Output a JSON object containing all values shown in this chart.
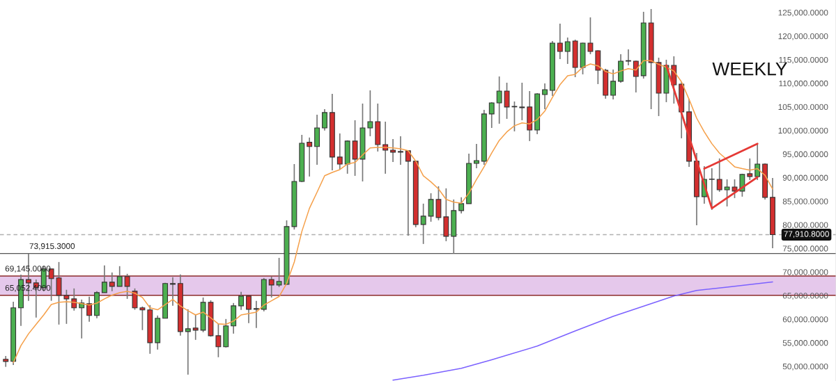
{
  "chart_data": {
    "type": "candlestick",
    "categories": [
      null,
      null,
      null,
      null,
      null,
      null,
      null,
      null,
      null,
      null,
      null,
      null,
      null,
      null,
      null,
      null,
      null,
      null,
      null,
      null,
      null,
      null,
      null,
      null,
      null,
      null,
      null,
      null,
      null,
      null,
      null,
      null,
      null,
      null,
      null,
      null,
      null,
      null,
      null,
      null,
      null,
      null,
      null,
      null,
      null,
      null,
      null,
      null,
      null,
      null,
      null,
      null,
      null,
      null,
      null,
      null,
      null,
      null,
      null,
      null,
      null,
      null,
      null,
      null,
      null,
      null,
      null,
      null,
      null,
      null,
      null,
      null,
      null,
      null,
      null,
      null,
      null,
      null,
      null,
      null,
      null,
      null,
      null,
      null,
      null,
      null,
      null,
      null,
      null,
      null,
      null,
      null,
      null,
      null,
      null,
      null,
      null,
      null,
      null,
      null,
      null,
      null
    ],
    "ohlc": [
      [
        51500,
        52200,
        49900,
        51050
      ],
      [
        51060,
        63700,
        50300,
        62400
      ],
      [
        62400,
        69460,
        58570,
        68400
      ],
      [
        68400,
        73900,
        63870,
        67700
      ],
      [
        67700,
        68400,
        60330,
        66700
      ],
      [
        66700,
        71240,
        65930,
        70650
      ],
      [
        70650,
        70650,
        63900,
        68590
      ],
      [
        68740,
        72120,
        58860,
        65050
      ],
      [
        65050,
        66230,
        59010,
        64310
      ],
      [
        64310,
        66520,
        61810,
        62400
      ],
      [
        62400,
        64160,
        55920,
        63430
      ],
      [
        63280,
        64750,
        59450,
        60780
      ],
      [
        60780,
        65930,
        60190,
        65640
      ],
      [
        65640,
        71380,
        65640,
        67850
      ],
      [
        67850,
        69900,
        65930,
        66960
      ],
      [
        66960,
        71240,
        66960,
        69030
      ],
      [
        69030,
        69620,
        64310,
        66960
      ],
      [
        65930,
        66520,
        62000,
        62400
      ],
      [
        62400,
        62700,
        57690,
        61960
      ],
      [
        61960,
        62990,
        52670,
        55030
      ],
      [
        55030,
        60780,
        53560,
        60190
      ],
      [
        60190,
        67700,
        60190,
        67560
      ],
      [
        67560,
        68880,
        62840,
        67400
      ],
      [
        67560,
        69470,
        56500,
        57380
      ],
      [
        57380,
        62100,
        48250,
        57970
      ],
      [
        58120,
        61060,
        55620,
        57680
      ],
      [
        57680,
        64600,
        57240,
        63570
      ],
      [
        63570,
        64010,
        56300,
        56500
      ],
      [
        56500,
        59010,
        51940,
        54150
      ],
      [
        54150,
        60040,
        54000,
        58570
      ],
      [
        58570,
        63430,
        56940,
        62840
      ],
      [
        62840,
        65780,
        61960,
        64900
      ],
      [
        64900,
        64900,
        59150,
        62100
      ],
      [
        62100,
        63870,
        58130,
        62250
      ],
      [
        62100,
        68730,
        61660,
        68420
      ],
      [
        68420,
        69030,
        64600,
        67250
      ],
      [
        67250,
        73000,
        66820,
        68000
      ],
      [
        67400,
        80950,
        67250,
        79630
      ],
      [
        79630,
        92880,
        79000,
        89200
      ],
      [
        89200,
        99070,
        89050,
        97300
      ],
      [
        97500,
        98500,
        90240,
        96600
      ],
      [
        96600,
        103350,
        92740,
        100540
      ],
      [
        100540,
        104520,
        100000,
        103790
      ],
      [
        103790,
        107760,
        91560,
        94360
      ],
      [
        94360,
        99370,
        91710,
        92880
      ],
      [
        92880,
        97900,
        90830,
        97750
      ],
      [
        97750,
        102170,
        90380,
        93920
      ],
      [
        93920,
        105700,
        89200,
        100540
      ],
      [
        100540,
        108500,
        98780,
        101870
      ],
      [
        101870,
        105700,
        95540,
        97010
      ],
      [
        97010,
        101870,
        90830,
        95830
      ],
      [
        95830,
        98190,
        93330,
        95390
      ],
      [
        95540,
        98780,
        92740,
        95400
      ],
      [
        95690,
        95690,
        77710,
        93480
      ],
      [
        93480,
        93480,
        79480,
        80070
      ],
      [
        80070,
        84490,
        75950,
        81840
      ],
      [
        81840,
        86700,
        80660,
        85370
      ],
      [
        85370,
        88170,
        80960,
        81550
      ],
      [
        81690,
        87730,
        76530,
        77570
      ],
      [
        77570,
        85370,
        73890,
        83020
      ],
      [
        83020,
        85820,
        82430,
        84490
      ],
      [
        84490,
        95090,
        84490,
        93030
      ],
      [
        93030,
        97160,
        92000,
        93620
      ],
      [
        93480,
        104380,
        92740,
        103500
      ],
      [
        103500,
        106000,
        100540,
        105850
      ],
      [
        105850,
        111450,
        101430,
        108350
      ],
      [
        108350,
        110120,
        102460,
        104970
      ],
      [
        105000,
        106140,
        99810,
        105100
      ],
      [
        104970,
        110120,
        102170,
        104820
      ],
      [
        104970,
        108350,
        97750,
        100100
      ],
      [
        100100,
        107900,
        99220,
        107760
      ],
      [
        107610,
        109970,
        104520,
        108650
      ],
      [
        108500,
        118960,
        107320,
        118520
      ],
      [
        118520,
        122640,
        115130,
        116750
      ],
      [
        116750,
        119700,
        114100,
        118810
      ],
      [
        118960,
        119260,
        111300,
        113360
      ],
      [
        113360,
        118600,
        111890,
        118520
      ],
      [
        118520,
        123970,
        116160,
        116750
      ],
      [
        116900,
        117000,
        109830,
        112770
      ],
      [
        112770,
        113070,
        106730,
        107470
      ],
      [
        107470,
        112920,
        106580,
        110420
      ],
      [
        110420,
        116160,
        110120,
        114690
      ],
      [
        114690,
        117190,
        113800,
        114800
      ],
      [
        114690,
        114800,
        108060,
        111450
      ],
      [
        111600,
        125150,
        111000,
        122790
      ],
      [
        122790,
        125740,
        104520,
        114400
      ],
      [
        114400,
        115430,
        103050,
        107910
      ],
      [
        107910,
        114990,
        106000,
        113800
      ],
      [
        113800,
        115720,
        105700,
        109680
      ],
      [
        109830,
        110270,
        98340,
        103940
      ],
      [
        103940,
        106730,
        92300,
        93480
      ],
      [
        93480,
        95240,
        79920,
        85970
      ],
      [
        85970,
        92440,
        84490,
        89640
      ],
      [
        89640,
        92000,
        83170,
        89700
      ],
      [
        89640,
        94070,
        87000,
        87430
      ],
      [
        87430,
        89640,
        83900,
        88020
      ],
      [
        88020,
        89640,
        85670,
        87140
      ],
      [
        87140,
        90830,
        85970,
        90680
      ],
      [
        90830,
        94070,
        89500,
        90240
      ],
      [
        90240,
        97160,
        89500,
        92880
      ],
      [
        92880,
        93030,
        85370,
        85820
      ],
      [
        85820,
        89940,
        75060,
        77910.8
      ]
    ],
    "colors": [
      "#d32f2f",
      "#4caf50",
      "#4caf50",
      "#d32f2f",
      "#d32f2f",
      "#4caf50",
      "#d32f2f",
      "#d32f2f",
      "#d32f2f",
      "#d32f2f",
      "#4caf50",
      "#d32f2f",
      "#4caf50",
      "#4caf50",
      "#d32f2f",
      "#4caf50",
      "#d32f2f",
      "#d32f2f",
      "#d32f2f",
      "#d32f2f",
      "#4caf50",
      "#4caf50",
      "#d32f2f",
      "#d32f2f",
      "#4caf50",
      "#d32f2f",
      "#4caf50",
      "#d32f2f",
      "#d32f2f",
      "#4caf50",
      "#4caf50",
      "#4caf50",
      "#d32f2f",
      "#4caf50",
      "#4caf50",
      "#d32f2f",
      "#4caf50",
      "#4caf50",
      "#4caf50",
      "#4caf50",
      "#d32f2f",
      "#4caf50",
      "#4caf50",
      "#d32f2f",
      "#d32f2f",
      "#4caf50",
      "#d32f2f",
      "#4caf50",
      "#4caf50",
      "#d32f2f",
      "#d32f2f",
      "#d32f2f",
      "#d32f2f",
      "#d32f2f",
      "#d32f2f",
      "#4caf50",
      "#4caf50",
      "#d32f2f",
      "#d32f2f",
      "#4caf50",
      "#4caf50",
      "#4caf50",
      "#4caf50",
      "#4caf50",
      "#4caf50",
      "#4caf50",
      "#d32f2f",
      "#4caf50",
      "#d32f2f",
      "#d32f2f",
      "#4caf50",
      "#4caf50",
      "#4caf50",
      "#d32f2f",
      "#4caf50",
      "#d32f2f",
      "#4caf50",
      "#d32f2f",
      "#d32f2f",
      "#d32f2f",
      "#4caf50",
      "#4caf50",
      "#4caf50",
      "#d32f2f",
      "#4caf50",
      "#d32f2f",
      "#d32f2f",
      "#4caf50",
      "#d32f2f",
      "#d32f2f",
      "#d32f2f",
      "#d32f2f",
      "#4caf50",
      "#4caf50",
      "#d32f2f",
      "#4caf50",
      "#d32f2f",
      "#4caf50",
      "#d32f2f",
      "#4caf50",
      "#d32f2f",
      "#d32f2f"
    ],
    "series": [
      {
        "type": "line",
        "color": "#f5a04a",
        "values": [
          null,
          50800,
          54400,
          56900,
          58900,
          60900,
          63100,
          63600,
          63700,
          63600,
          63300,
          63000,
          63400,
          64300,
          65100,
          65600,
          65900,
          65500,
          64600,
          62400,
          62000,
          63100,
          64200,
          62800,
          61800,
          60900,
          61500,
          60300,
          59000,
          58900,
          59600,
          60900,
          61200,
          61500,
          63000,
          63900,
          64800,
          67600,
          72100,
          78600,
          83500,
          86900,
          90400,
          91100,
          91700,
          92900,
          93200,
          94800,
          96300,
          96400,
          96400,
          96300,
          96100,
          95700,
          93500,
          90400,
          89100,
          87600,
          85400,
          84800,
          84600,
          86700,
          89600,
          92300,
          95200,
          97900,
          99700,
          101000,
          101600,
          101400,
          102300,
          104100,
          107000,
          109700,
          111600,
          111900,
          113400,
          114100,
          113700,
          112500,
          112000,
          112600,
          113100,
          112800,
          114800,
          114800,
          114000,
          113400,
          112600,
          110300,
          106600,
          102600,
          99700,
          97200,
          95200,
          93800,
          92300,
          91900,
          91600,
          91900,
          90500,
          87600
        ]
      },
      {
        "type": "line",
        "color": "#7b61ff",
        "values": [
          null,
          null,
          null,
          null,
          null,
          null,
          null,
          null,
          null,
          null,
          null,
          null,
          null,
          null,
          null,
          null,
          null,
          null,
          null,
          null,
          null,
          null,
          null,
          null,
          null,
          null,
          null,
          null,
          null,
          null,
          null,
          null,
          null,
          null,
          null,
          null,
          null,
          null,
          null,
          null,
          null,
          null,
          null,
          null,
          null,
          null,
          null,
          null,
          null,
          null,
          null,
          47100,
          null,
          null,
          null,
          48100,
          null,
          null,
          null,
          null,
          49600,
          null,
          null,
          null,
          51400,
          null,
          null,
          null,
          null,
          null,
          54300,
          null,
          null,
          null,
          null,
          57500,
          null,
          null,
          null,
          null,
          60600,
          null,
          null,
          null,
          null,
          63300,
          null,
          null,
          64900,
          null,
          null,
          66100,
          null,
          null,
          null,
          66800,
          null,
          null,
          null,
          null,
          null,
          67900
        ]
      },
      {
        "type": "line",
        "color": "#e53935",
        "values": [
          null,
          null,
          null,
          null,
          null,
          null,
          null,
          null,
          null,
          null,
          null,
          null,
          null,
          null,
          null,
          null,
          null,
          null,
          null,
          null,
          null,
          null,
          null,
          null,
          null,
          null,
          null,
          null,
          null,
          null,
          null,
          null,
          null,
          null,
          null,
          null,
          null,
          null,
          null,
          null,
          null,
          null,
          null,
          null,
          null,
          null,
          null,
          null,
          null,
          null,
          null,
          null,
          null,
          null,
          null,
          null,
          null,
          null,
          null,
          null,
          null,
          null,
          null,
          null,
          null,
          null,
          null,
          null,
          null,
          null,
          null,
          null,
          null,
          null,
          null,
          null,
          null,
          null,
          null,
          null,
          null,
          null,
          null,
          null,
          null,
          null,
          null,
          113800,
          null,
          null,
          null,
          null,
          null,
          83500,
          null,
          null,
          null,
          null,
          null,
          90100,
          null,
          null
        ]
      },
      {
        "type": "line",
        "color": "#e53935",
        "values": [
          null,
          null,
          null,
          null,
          null,
          null,
          null,
          null,
          null,
          null,
          null,
          null,
          null,
          null,
          null,
          null,
          null,
          null,
          null,
          null,
          null,
          null,
          null,
          null,
          null,
          null,
          null,
          null,
          null,
          null,
          null,
          null,
          null,
          null,
          null,
          null,
          null,
          null,
          null,
          null,
          null,
          null,
          null,
          null,
          null,
          null,
          null,
          null,
          null,
          null,
          null,
          null,
          null,
          null,
          null,
          null,
          null,
          null,
          null,
          null,
          null,
          null,
          null,
          null,
          null,
          null,
          null,
          null,
          null,
          null,
          null,
          null,
          null,
          null,
          null,
          null,
          null,
          null,
          null,
          null,
          null,
          null,
          null,
          null,
          null,
          null,
          null,
          null,
          null,
          null,
          null,
          null,
          91900,
          null,
          null,
          null,
          null,
          null,
          null,
          97200,
          null,
          null
        ]
      }
    ],
    "ylim": [
      46900,
      127650
    ],
    "yticks": [
      {
        "value": 50000,
        "label": "50,000.0000"
      },
      {
        "value": 55000,
        "label": "55,000.0000"
      },
      {
        "value": 60000,
        "label": "60,000.0000"
      },
      {
        "value": 65000,
        "label": "65,000.0000"
      },
      {
        "value": 70000,
        "label": "70,000.0000"
      },
      {
        "value": 75000,
        "label": "75,000.0000"
      },
      {
        "value": 80000,
        "label": "80,000.0000"
      },
      {
        "value": 85000,
        "label": "85,000.0000"
      },
      {
        "value": 90000,
        "label": "90,000.0000"
      },
      {
        "value": 95000,
        "label": "95,000.0000"
      },
      {
        "value": 100000,
        "label": "100,000.0000"
      },
      {
        "value": 105000,
        "label": "105,000.0000"
      },
      {
        "value": 110000,
        "label": "110,000.0000"
      },
      {
        "value": 115000,
        "label": "115,000.0000"
      },
      {
        "value": 120000,
        "label": "120,000.0000"
      },
      {
        "value": 125000,
        "label": "125,000.0000"
      }
    ],
    "ref_lines": [
      {
        "axis": "y",
        "value": 73915.3,
        "label": "73,915.3000",
        "color": "#555555",
        "line_style": "solid"
      },
      {
        "axis": "y",
        "value": 77910.8,
        "label": "77,910.8000",
        "color": "#b0b0b0",
        "line_style": "dashed"
      },
      {
        "axis": "y",
        "value": 69145.0,
        "label": "69,145.0000",
        "color": "#8b2a2a",
        "line_style": "solid"
      },
      {
        "axis": "y",
        "value": 65052.4,
        "label": "65,052.4000",
        "color": "#8b2a2a",
        "line_style": "solid"
      }
    ],
    "bands": [
      {
        "axis": "y",
        "from": 65052.4,
        "to": 69145.0,
        "color": "#e1bee7"
      }
    ],
    "annotations": [
      "WEEKLY"
    ]
  }
}
